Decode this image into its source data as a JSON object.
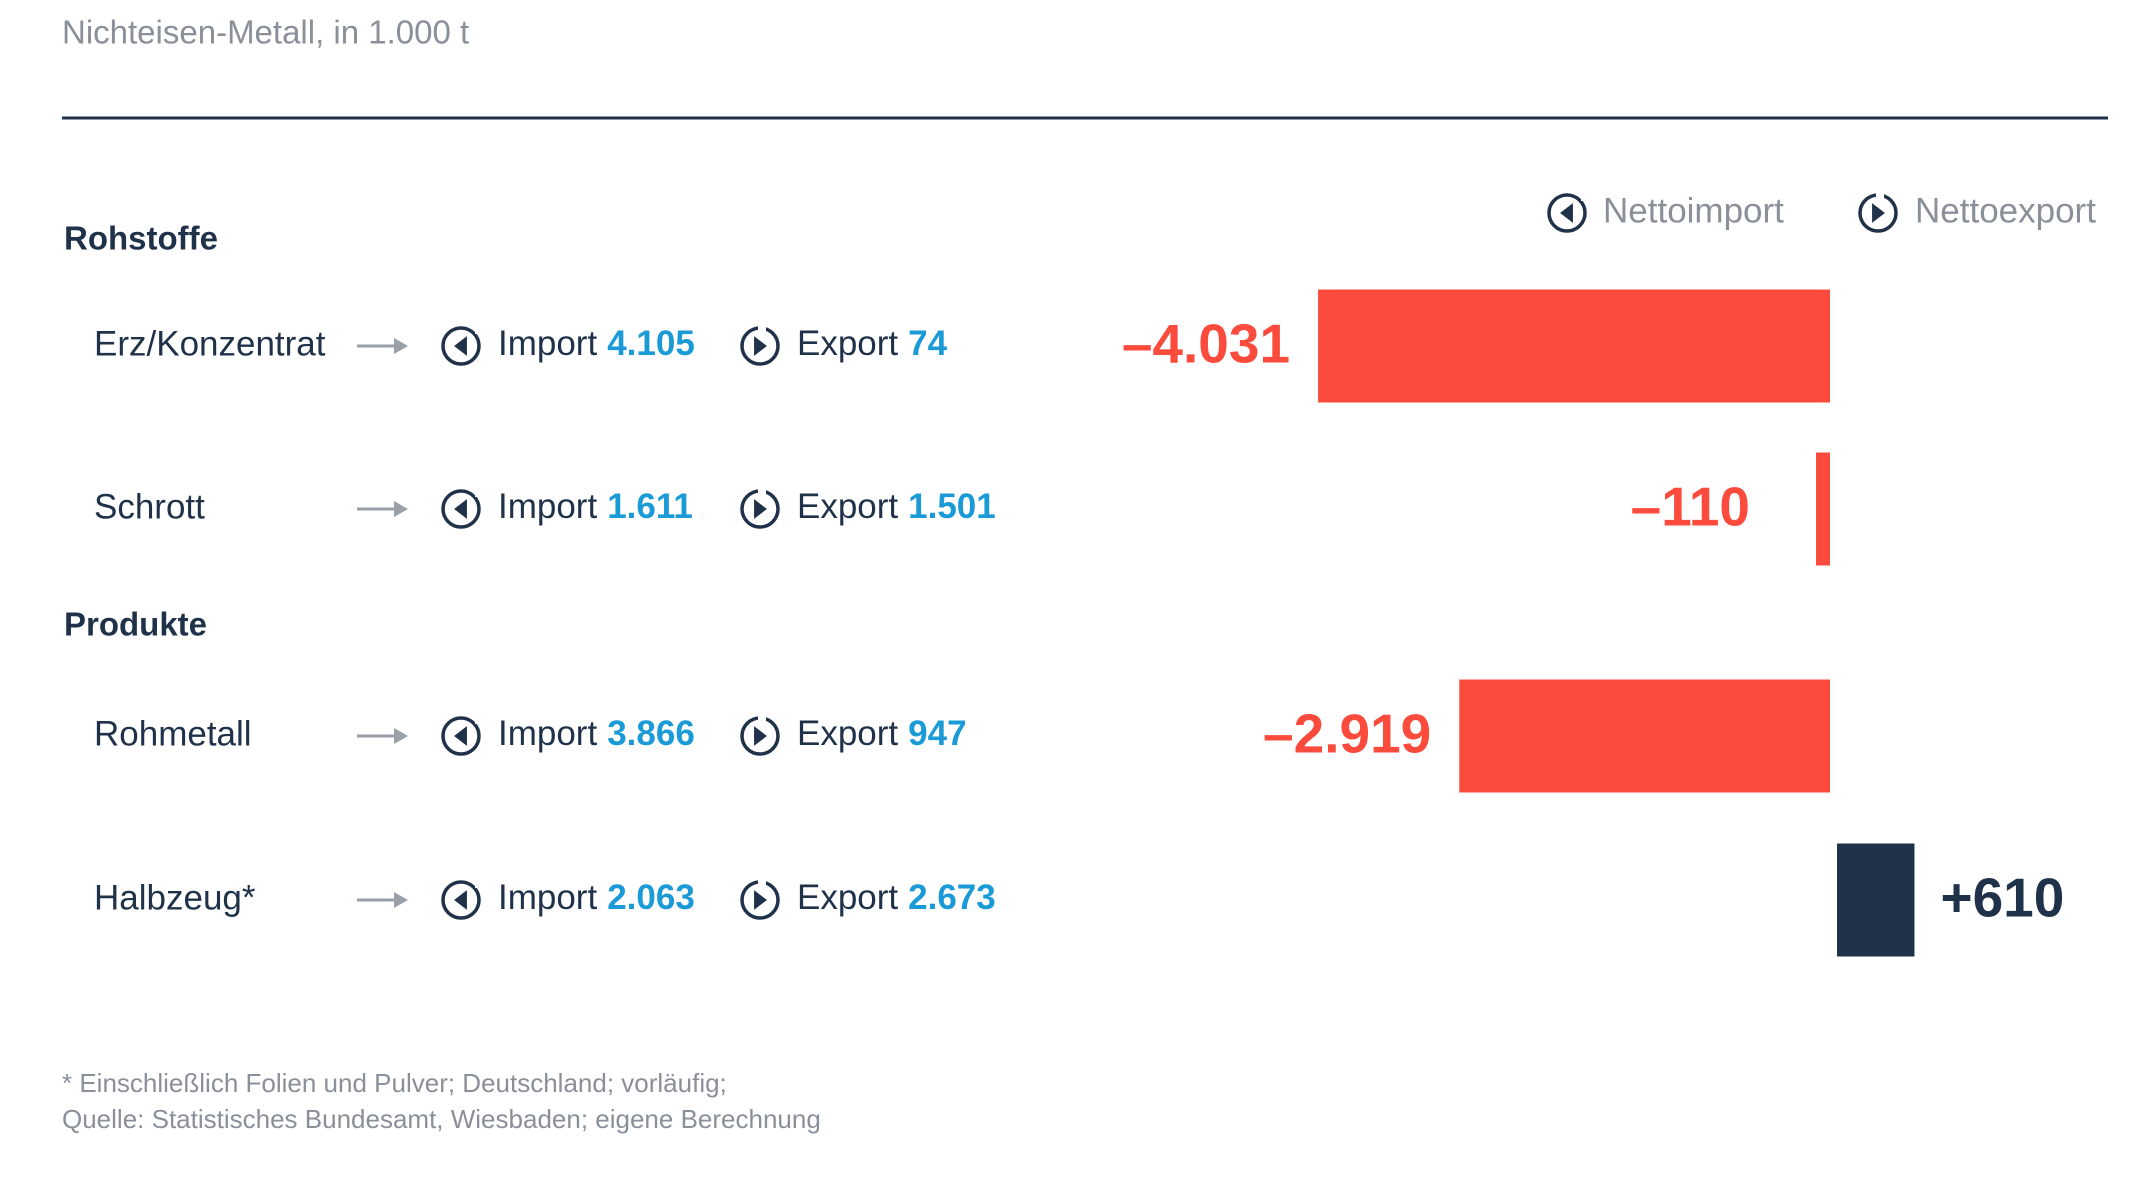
{
  "chart_data": {
    "type": "bar",
    "title": "Nichteisen-Metall, in 1.000 t",
    "legend": [
      {
        "name": "Nettoimport",
        "color": "#fb4b3c"
      },
      {
        "name": "Nettoexport",
        "color": "#1f3249"
      }
    ],
    "groups": [
      {
        "name": "Rohstoffe",
        "categories": [
          "Erz/Konzentrat",
          "Schrott"
        ],
        "series": [
          {
            "name": "Import",
            "color": "#1a9ad6",
            "values": [
              4105,
              1611
            ],
            "value_labels": [
              "4.105",
              "1.611"
            ]
          },
          {
            "name": "Export",
            "color": "#1a9ad6",
            "values": [
              74,
              1501
            ],
            "value_labels": [
              "74",
              "1.501"
            ]
          }
        ],
        "net": {
          "values": [
            -4031,
            -110
          ],
          "value_labels": [
            "–4.031",
            "–110"
          ]
        }
      },
      {
        "name": "Produkte",
        "categories": [
          "Rohmetall",
          "Halbzeug*"
        ],
        "series": [
          {
            "name": "Import",
            "color": "#1a9ad6",
            "values": [
              3866,
              2063
            ],
            "value_labels": [
              "3.866",
              "2.063"
            ]
          },
          {
            "name": "Export",
            "color": "#1a9ad6",
            "values": [
              947,
              2673
            ],
            "value_labels": [
              "947",
              "2.673"
            ]
          }
        ],
        "net": {
          "values": [
            -2919,
            610
          ],
          "value_labels": [
            "–2.919",
            "+610"
          ]
        }
      }
    ],
    "footnote": [
      "* Einschließlich Folien und Pulver; Deutschland; vorläufig;",
      "Quelle: Statistisches Bundesamt, Wiesbaden; eigene Berechnung"
    ]
  }
}
